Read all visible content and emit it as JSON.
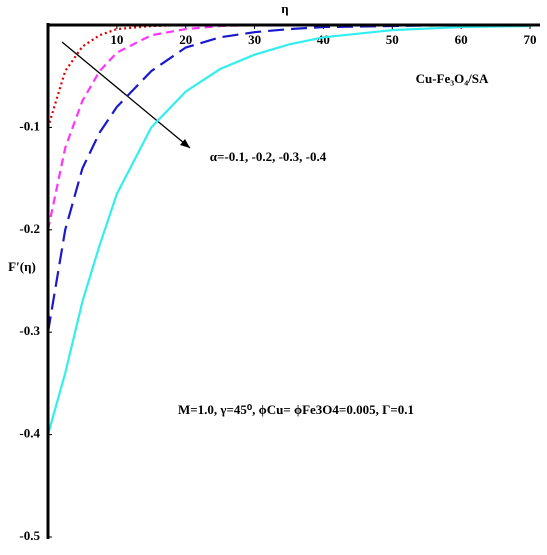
{
  "chart_data": {
    "type": "line",
    "x_label": "η",
    "y_label": "F′(η)",
    "annotations": [
      "Cu-Fe₃O₄/SA",
      "α=-0.1, -0.2, -0.3, -0.4",
      "M=1.0, γ=45⁰, ϕCu= ϕFe3O4=0.005,  Γ=0.1"
    ],
    "x": [
      0,
      2.5,
      5,
      7.5,
      10,
      15,
      20,
      25,
      30,
      35,
      40,
      50,
      60,
      70
    ],
    "series": [
      {
        "color": "#e00000",
        "dash": "dotted",
        "values": [
          -0.1,
          -0.045,
          -0.021,
          -0.01,
          -0.004,
          -0.001,
          0,
          0,
          0,
          0,
          0,
          0,
          0,
          0
        ]
      },
      {
        "color": "#ff33ff",
        "dash": "dashed",
        "values": [
          -0.2,
          -0.12,
          -0.074,
          -0.045,
          -0.027,
          -0.01,
          -0.004,
          -0.001,
          0,
          0,
          0,
          0,
          0,
          0
        ]
      },
      {
        "color": "#1a1acc",
        "dash": "longdash",
        "values": [
          -0.3,
          -0.2,
          -0.14,
          -0.105,
          -0.08,
          -0.045,
          -0.022,
          -0.012,
          -0.007,
          -0.004,
          -0.002,
          -0.001,
          0,
          0
        ]
      },
      {
        "color": "#33eeee",
        "dash": "solid",
        "values": [
          -0.4,
          -0.34,
          -0.27,
          -0.215,
          -0.165,
          -0.1,
          -0.065,
          -0.043,
          -0.029,
          -0.019,
          -0.012,
          -0.005,
          -0.002,
          -0.001
        ]
      }
    ],
    "xlim": [
      0,
      70
    ],
    "xticks": [
      10,
      20,
      30,
      40,
      50,
      60,
      70
    ],
    "ylim": [
      -0.5,
      0
    ],
    "yticks": [
      -0.1,
      -0.2,
      -0.3,
      -0.4,
      -0.5
    ],
    "grid": false
  }
}
